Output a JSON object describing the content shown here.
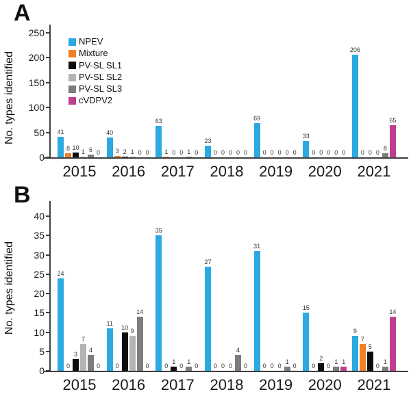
{
  "chart_data": [
    {
      "type": "bar",
      "panel": "A",
      "title": "",
      "xlabel": "",
      "ylabel": "No. types identified",
      "ylim": [
        0,
        255
      ],
      "yticks": [
        0,
        50,
        100,
        150,
        200,
        250
      ],
      "grid": false,
      "legend": true,
      "legend_position": "upper-left-inside",
      "categories": [
        "2015",
        "2016",
        "2017",
        "2018",
        "2019",
        "2020",
        "2021"
      ],
      "series": [
        {
          "name": "NPEV",
          "color": "#2BA9E1",
          "values": [
            41,
            40,
            63,
            23,
            69,
            33,
            206
          ]
        },
        {
          "name": "Mixture",
          "color": "#F08122",
          "values": [
            8,
            3,
            1,
            0,
            0,
            0,
            0
          ]
        },
        {
          "name": "PV-SL SL1",
          "color": "#0D0D0D",
          "values": [
            10,
            2,
            0,
            0,
            0,
            0,
            0
          ]
        },
        {
          "name": "PV-SL SL2",
          "color": "#B4B4B4",
          "values": [
            1,
            1,
            0,
            0,
            0,
            0,
            0
          ]
        },
        {
          "name": "PV-SL SL3",
          "color": "#7D7D7D",
          "values": [
            6,
            0,
            1,
            0,
            0,
            0,
            8
          ]
        },
        {
          "name": "cVDPV2",
          "color": "#BE3F8F",
          "values": [
            0,
            0,
            0,
            0,
            0,
            0,
            65
          ]
        }
      ]
    },
    {
      "type": "bar",
      "panel": "B",
      "title": "",
      "xlabel": "",
      "ylabel": "No. types identified",
      "ylim": [
        0,
        42.5
      ],
      "yticks": [
        0,
        5,
        10,
        15,
        20,
        25,
        30,
        35,
        40
      ],
      "grid": false,
      "legend": false,
      "legend_position": "none",
      "categories": [
        "2015",
        "2016",
        "2017",
        "2018",
        "2019",
        "2020",
        "2021"
      ],
      "series": [
        {
          "name": "NPEV",
          "color": "#2BA9E1",
          "values": [
            24,
            11,
            35,
            27,
            31,
            15,
            9
          ]
        },
        {
          "name": "Mixture",
          "color": "#F08122",
          "values": [
            0,
            0,
            0,
            0,
            0,
            0,
            7
          ]
        },
        {
          "name": "PV-SL SL1",
          "color": "#0D0D0D",
          "values": [
            3,
            10,
            1,
            0,
            0,
            2,
            5
          ]
        },
        {
          "name": "PV-SL SL2",
          "color": "#B4B4B4",
          "values": [
            7,
            9,
            0,
            0,
            0,
            0,
            0
          ]
        },
        {
          "name": "PV-SL SL3",
          "color": "#7D7D7D",
          "values": [
            4,
            14,
            1,
            4,
            1,
            1,
            1
          ]
        },
        {
          "name": "cVDPV2",
          "color": "#BE3F8F",
          "values": [
            0,
            0,
            0,
            0,
            0,
            1,
            14
          ]
        }
      ]
    }
  ]
}
